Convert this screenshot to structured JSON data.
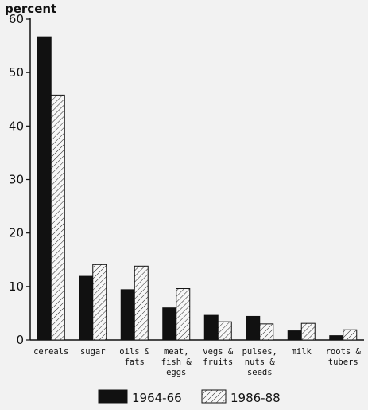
{
  "chart_data": {
    "type": "bar",
    "ylabel": "percent",
    "ylim": [
      0,
      60
    ],
    "yticks": [
      0,
      10,
      20,
      30,
      40,
      50,
      60
    ],
    "categories": [
      [
        "cereals"
      ],
      [
        "sugar"
      ],
      [
        "oils &",
        "fats"
      ],
      [
        "meat,",
        "fish &",
        "eggs"
      ],
      [
        "vegs &",
        "fruits"
      ],
      [
        "pulses,",
        "nuts &",
        "seeds"
      ],
      [
        "milk"
      ],
      [
        "roots &",
        "tubers"
      ]
    ],
    "series": [
      {
        "name": "1964-66",
        "fill": "solid",
        "color": "#111111",
        "values": [
          56.7,
          11.9,
          9.4,
          6.0,
          4.6,
          4.4,
          1.7,
          0.8
        ]
      },
      {
        "name": "1986-88",
        "fill": "hatched",
        "color": "#111111",
        "values": [
          45.8,
          14.1,
          13.8,
          9.6,
          3.4,
          3.0,
          3.1,
          1.9
        ]
      }
    ],
    "grid": false,
    "legend_position": "bottom-center"
  }
}
